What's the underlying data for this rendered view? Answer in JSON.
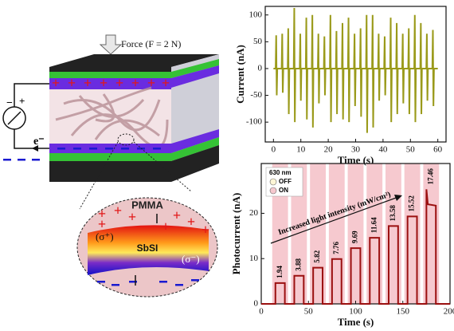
{
  "chart_data": [
    {
      "type": "line",
      "ylabel": "Current (nA)",
      "xlabel": "Time (s)",
      "color": "#9a9a1a",
      "xlim": [
        -3,
        63
      ],
      "xticks": [
        0,
        10,
        20,
        30,
        40,
        50,
        60
      ],
      "ylim": [
        -137,
        116
      ],
      "yticks": [
        -100,
        -50,
        0,
        50,
        100
      ],
      "x": [
        0,
        0.8,
        1,
        1.2,
        1.4,
        3,
        3.2,
        3.4,
        3.6,
        5.2,
        5.4,
        5.6,
        5.8,
        7.4,
        7.6,
        7.8,
        8,
        9.6,
        9.8,
        10,
        10.2,
        11.8,
        12,
        12.2,
        12.4,
        14,
        14.2,
        14.4,
        14.6,
        16.2,
        16.4,
        16.6,
        16.8,
        18.4,
        18.6,
        18.8,
        19,
        20.6,
        20.8,
        21,
        21.2,
        22.8,
        23,
        23.2,
        23.4,
        25,
        25.2,
        25.4,
        25.6,
        27.2,
        27.4,
        27.6,
        27.8,
        29.4,
        29.6,
        29.8,
        30,
        31.6,
        31.8,
        32,
        32.2,
        33.8,
        34,
        34.2,
        34.4,
        36,
        36.2,
        36.4,
        36.6,
        38.2,
        38.4,
        38.6,
        38.8,
        40.4,
        40.6,
        40.8,
        41,
        42.6,
        42.8,
        43,
        43.2,
        44.8,
        45,
        45.2,
        45.4,
        47,
        47.2,
        47.4,
        47.6,
        49.2,
        49.4,
        49.6,
        49.8,
        51.4,
        51.6,
        51.8,
        52,
        53.6,
        53.8,
        54,
        54.2,
        55.8,
        56,
        56.2,
        56.4,
        58,
        58.2,
        58.4,
        58.6,
        60
      ],
      "values": [
        0,
        0,
        62,
        -50,
        0,
        0,
        65,
        -45,
        0,
        0,
        75,
        -85,
        0,
        0,
        113,
        -100,
        0,
        0,
        65,
        -60,
        0,
        0,
        95,
        -95,
        0,
        0,
        100,
        -110,
        0,
        0,
        65,
        -65,
        0,
        0,
        60,
        -50,
        0,
        0,
        100,
        -100,
        0,
        0,
        70,
        -85,
        0,
        0,
        85,
        -95,
        0,
        0,
        95,
        -100,
        0,
        0,
        65,
        -70,
        0,
        0,
        75,
        -90,
        0,
        0,
        100,
        -120,
        0,
        0,
        100,
        -110,
        0,
        0,
        65,
        -60,
        0,
        0,
        60,
        -50,
        0,
        0,
        95,
        -100,
        0,
        0,
        85,
        -85,
        0,
        0,
        65,
        -65,
        0,
        0,
        75,
        -85,
        0,
        0,
        100,
        -100,
        0,
        0,
        85,
        -85,
        0,
        0,
        65,
        -60,
        0,
        0,
        72,
        -70,
        0,
        0
      ]
    },
    {
      "type": "line",
      "ylabel": "Photocurrent (nA)",
      "xlabel": "Time (s)",
      "color": "#9b1010",
      "xlim": [
        0,
        200
      ],
      "xticks": [
        0,
        50,
        100,
        150,
        200
      ],
      "ylim": [
        0,
        31
      ],
      "yticks": [
        0,
        10,
        20
      ],
      "x": [
        0,
        15,
        15,
        25,
        25,
        35,
        35,
        45,
        45,
        55,
        55,
        65,
        65,
        75,
        75,
        85,
        85,
        95,
        95,
        105,
        105,
        115,
        115,
        125,
        125,
        135,
        135,
        145,
        145,
        155,
        155,
        165,
        165,
        175,
        175,
        176.5,
        185,
        185,
        200
      ],
      "values": [
        0,
        0,
        4.6,
        4.6,
        0,
        0,
        6.2,
        6.2,
        0,
        0,
        8.0,
        8.0,
        0,
        0,
        9.9,
        9.9,
        0,
        0,
        12.3,
        12.3,
        0,
        0,
        14.6,
        14.6,
        0,
        0,
        17.2,
        17.2,
        0,
        0,
        19.3,
        19.3,
        0,
        0,
        25.3,
        22,
        21.7,
        0,
        0
      ],
      "legend": {
        "title": "630 nm",
        "position": "upper left",
        "entries": [
          {
            "name": "OFF",
            "color": "#fff6d6"
          },
          {
            "name": "ON",
            "color": "#f6c9cf"
          }
        ]
      },
      "annotation": "Increased light intensity (mW/cm²)",
      "intensities": [
        1.94,
        3.88,
        5.82,
        7.76,
        9.69,
        11.64,
        13.58,
        15.52,
        17.46
      ]
    }
  ],
  "diagram": {
    "force_label": "Force (F = 2 N)",
    "pmma": "PMMA",
    "sbsi": "SbSI",
    "sigma_plus": "(σ⁺)",
    "sigma_minus": "(σ⁻)",
    "electron": "e⁻",
    "plus": "+",
    "minus": "−"
  }
}
